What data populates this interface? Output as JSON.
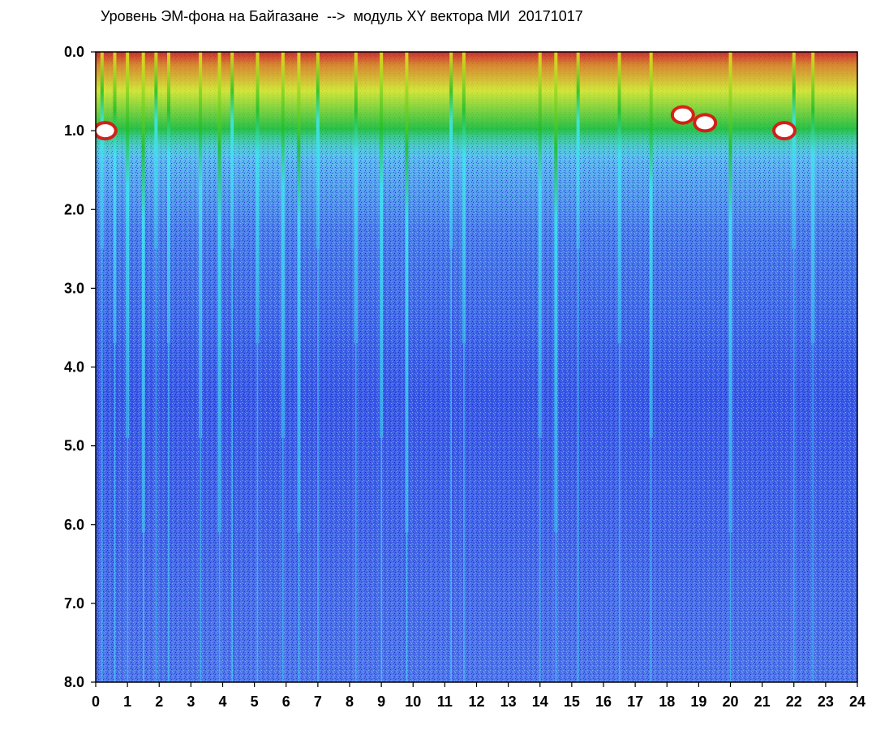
{
  "chart_data": {
    "type": "heatmap",
    "title": "Уровень ЭМ-фона на Байгазане  -->  модуль XY вектора МИ  20171017",
    "xlabel": "",
    "ylabel": "",
    "xlim": [
      0,
      24
    ],
    "ylim": [
      0,
      8
    ],
    "y_axis_inverted": true,
    "x_ticks": [
      "0",
      "1",
      "2",
      "3",
      "4",
      "5",
      "6",
      "7",
      "8",
      "9",
      "10",
      "11",
      "12",
      "13",
      "14",
      "15",
      "16",
      "17",
      "18",
      "19",
      "20",
      "21",
      "22",
      "23",
      "24"
    ],
    "y_ticks": [
      "0.0",
      "1.0",
      "2.0",
      "3.0",
      "4.0",
      "5.0",
      "6.0",
      "7.0",
      "8.0"
    ],
    "colorscale": [
      "#1a1acc",
      "#3a5ae6",
      "#6f9ef2",
      "#3fe6f2",
      "#1fbf2a",
      "#e8e81a",
      "#f07a10",
      "#e01010",
      "#ffffff"
    ],
    "grid": false,
    "features": {
      "bright_streaks_hours": [
        0.2,
        0.6,
        1.0,
        1.5,
        1.9,
        2.3,
        3.3,
        3.9,
        4.3,
        5.1,
        5.9,
        6.4,
        7.0,
        8.2,
        9.0,
        9.8,
        11.2,
        11.6,
        14.0,
        14.5,
        15.2,
        16.5,
        17.5,
        20.0,
        22.0,
        22.6
      ],
      "white_saturation_spots": [
        {
          "hour": 0.3,
          "level": 1.0
        },
        {
          "hour": 18.5,
          "level": 0.8
        },
        {
          "hour": 19.2,
          "level": 0.9
        },
        {
          "hour": 21.7,
          "level": 1.0
        }
      ]
    }
  }
}
